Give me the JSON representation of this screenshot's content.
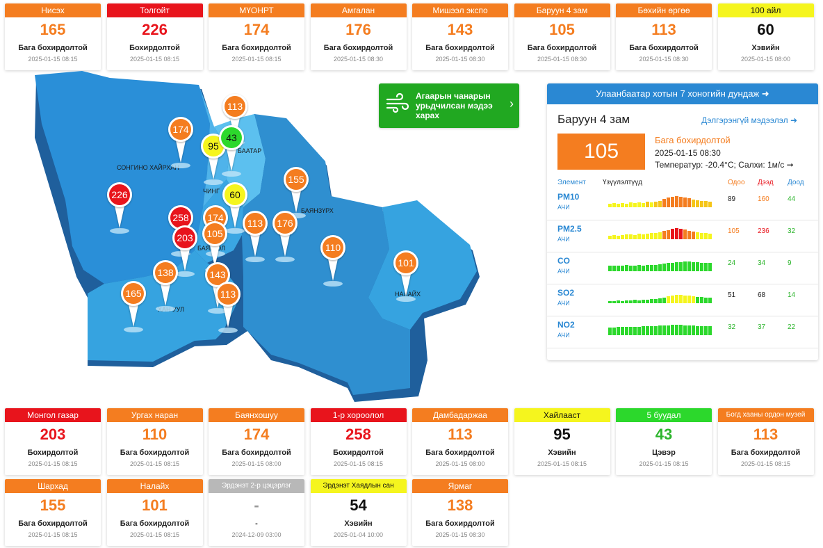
{
  "top_cards": [
    {
      "name": "Нисэх",
      "value": "165",
      "status": "Бага бохирдолтой",
      "time": "2025-01-15 08:15",
      "color": "orange"
    },
    {
      "name": "Толгойт",
      "value": "226",
      "status": "Бохирдолтой",
      "time": "2025-01-15 08:15",
      "color": "red"
    },
    {
      "name": "МҮОНРТ",
      "value": "174",
      "status": "Бага бохирдолтой",
      "time": "2025-01-15 08:15",
      "color": "orange"
    },
    {
      "name": "Амгалан",
      "value": "176",
      "status": "Бага бохирдолтой",
      "time": "2025-01-15 08:30",
      "color": "orange"
    },
    {
      "name": "Мишээл экспо",
      "value": "143",
      "status": "Бага бохирдолтой",
      "time": "2025-01-15 08:30",
      "color": "orange"
    },
    {
      "name": "Баруун 4 зам",
      "value": "105",
      "status": "Бага бохирдолтой",
      "time": "2025-01-15 08:30",
      "color": "orange"
    },
    {
      "name": "Бөхийн өргөө",
      "value": "113",
      "status": "Бага бохирдолтой",
      "time": "2025-01-15 08:30",
      "color": "orange"
    },
    {
      "name": "100 айл",
      "value": "60",
      "status": "Хэвийн",
      "time": "2025-01-15 08:00",
      "color": "yellow"
    }
  ],
  "bottom_cards_row1": [
    {
      "name": "Монгол газар",
      "value": "203",
      "status": "Бохирдолтой",
      "time": "2025-01-15 08:15",
      "color": "red"
    },
    {
      "name": "Ургах наран",
      "value": "110",
      "status": "Бага бохирдолтой",
      "time": "2025-01-15 08:15",
      "color": "orange"
    },
    {
      "name": "Баянхошуу",
      "value": "174",
      "status": "Бага бохирдолтой",
      "time": "2025-01-15 08:00",
      "color": "orange"
    },
    {
      "name": "1-р хороолол",
      "value": "258",
      "status": "Бохирдолтой",
      "time": "2025-01-15 08:15",
      "color": "red"
    },
    {
      "name": "Дамбадаржаа",
      "value": "113",
      "status": "Бага бохирдолтой",
      "time": "2025-01-15 08:00",
      "color": "orange"
    },
    {
      "name": "Хайлааст",
      "value": "95",
      "status": "Хэвийн",
      "time": "2025-01-15 08:15",
      "color": "yellow"
    },
    {
      "name": "5 буудал",
      "value": "43",
      "status": "Цэвэр",
      "time": "2025-01-15 08:15",
      "color": "green"
    },
    {
      "name": "Богд хааны ордон музей",
      "value": "113",
      "status": "Бага бохирдолтой",
      "time": "2025-01-15 08:15",
      "color": "orange"
    }
  ],
  "bottom_cards_row2": [
    {
      "name": "Шархад",
      "value": "155",
      "status": "Бага бохирдолтой",
      "time": "2025-01-15 08:15",
      "color": "orange"
    },
    {
      "name": "Налайх",
      "value": "101",
      "status": "Бага бохирдолтой",
      "time": "2025-01-15 08:15",
      "color": "orange"
    },
    {
      "name": "Эрдэнэт 2-р цэцэрлэг",
      "value": "-",
      "status": "-",
      "time": "2024-12-09 03:00",
      "color": "gray"
    },
    {
      "name": "Эрдэнэт Хаядлын сан",
      "value": "54",
      "status": "Хэвийн",
      "time": "2025-01-04 10:00",
      "color": "yellow"
    },
    {
      "name": "Ярмаг",
      "value": "138",
      "status": "Бага бохирдолтой",
      "time": "2025-01-15 08:30",
      "color": "orange"
    }
  ],
  "map": {
    "district_labels": [
      "СОНГИНО ХАЙРХАН",
      "ЧИНГ",
      "БААТАР",
      "БАЯНЗҮРХ",
      "БАЯН    ОЛ",
      "ХАН УУЛ",
      "НАЛАЙХ"
    ],
    "pins": [
      {
        "value": "174",
        "color": "#f47d20"
      },
      {
        "value": "113",
        "color": "#f47d20"
      },
      {
        "value": "95",
        "color": "#f5f51e"
      },
      {
        "value": "43",
        "color": "#2cd82c"
      },
      {
        "value": "226",
        "color": "#e8141c"
      },
      {
        "value": "60",
        "color": "#f5f51e"
      },
      {
        "value": "155",
        "color": "#f47d20"
      },
      {
        "value": "258",
        "color": "#e8141c"
      },
      {
        "value": "174",
        "color": "#f47d20"
      },
      {
        "value": "203",
        "color": "#e8141c"
      },
      {
        "value": "105",
        "color": "#f47d20"
      },
      {
        "value": "113",
        "color": "#f47d20"
      },
      {
        "value": "176",
        "color": "#f47d20"
      },
      {
        "value": "110",
        "color": "#f47d20"
      },
      {
        "value": "101",
        "color": "#f47d20"
      },
      {
        "value": "138",
        "color": "#f47d20"
      },
      {
        "value": "143",
        "color": "#f47d20"
      },
      {
        "value": "165",
        "color": "#f47d20"
      },
      {
        "value": "113",
        "color": "#f47d20"
      }
    ]
  },
  "forecast": {
    "label": "Агаарын чанарын урьдчилсан мэдээ харах"
  },
  "panel": {
    "title": "Улаанбаатар хотын 7 хоногийн дундаж",
    "station": "Баруун 4 зам",
    "detail_link": "Дэлгэрэнгүй мэдээлэл",
    "value": "105",
    "status": "Бага бохирдолтой",
    "datetime": "2025-01-15 08:30",
    "weather": "Температур: -20.4°C; Салхи: 1м/с",
    "headers": {
      "element": "Элемент",
      "chart": "Үзүүлэлтүүд",
      "now": "Одоо",
      "max": "Дээд",
      "min": "Доод"
    },
    "pollutants": [
      {
        "name": "PM10",
        "unit": "АЧИ",
        "now": "89",
        "max": "160",
        "min": "44",
        "now_color": "#222",
        "max_color": "#f47d20",
        "min_color": "#2cb52c"
      },
      {
        "name": "PM2.5",
        "unit": "АЧИ",
        "now": "105",
        "max": "236",
        "min": "32",
        "now_color": "#f47d20",
        "max_color": "#e8141c",
        "min_color": "#2cb52c"
      },
      {
        "name": "CO",
        "unit": "АЧИ",
        "now": "24",
        "max": "34",
        "min": "9",
        "now_color": "#2cb52c",
        "max_color": "#2cb52c",
        "min_color": "#2cb52c"
      },
      {
        "name": "SO2",
        "unit": "АЧИ",
        "now": "51",
        "max": "68",
        "min": "14",
        "now_color": "#222",
        "max_color": "#222",
        "min_color": "#2cb52c"
      },
      {
        "name": "NO2",
        "unit": "АЧИ",
        "now": "32",
        "max": "37",
        "min": "22",
        "now_color": "#2cb52c",
        "max_color": "#2cb52c",
        "min_color": "#2cb52c"
      }
    ]
  },
  "colors": {
    "orange": "#f47d20",
    "red": "#e8141c",
    "yellow": "#f5f51e",
    "green": "#2cd82c",
    "blue": "#2a88d3"
  }
}
